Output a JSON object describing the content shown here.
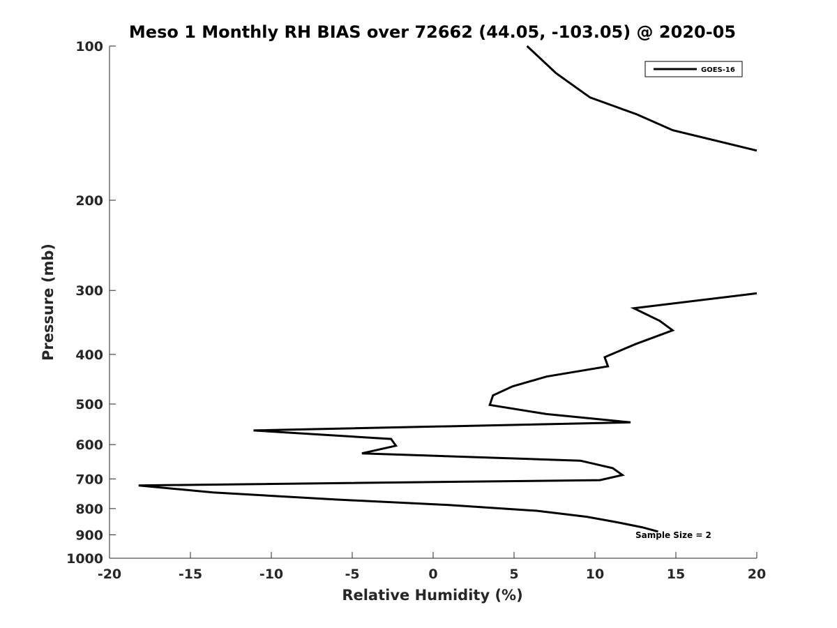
{
  "chart_data": {
    "type": "line",
    "title": "Meso 1 Monthly RH BIAS over 72662 (44.05, -103.05) @ 2020-05",
    "xlabel": "Relative Humidity (%)",
    "ylabel": "Pressure (mb)",
    "xlim": [
      -20,
      20
    ],
    "ylim": [
      100,
      1000
    ],
    "y_scale": "log",
    "y_reversed": true,
    "x_ticks": [
      -20,
      -15,
      -10,
      -5,
      0,
      5,
      10,
      15,
      20
    ],
    "x_tick_labels": [
      "-20",
      "-15",
      "-10",
      "-5",
      "0",
      "5",
      "10",
      "15",
      "20"
    ],
    "y_ticks": [
      100,
      200,
      300,
      400,
      500,
      600,
      700,
      800,
      900,
      1000
    ],
    "y_tick_labels": [
      "100",
      "200",
      "300",
      "400",
      "500",
      "600",
      "700",
      "800",
      "900",
      "1000"
    ],
    "grid": false,
    "legend_position": "top-right",
    "annotation": "Sample Size = 2",
    "series": [
      {
        "name": "GOES-16",
        "color": "#000000",
        "segments": [
          [
            {
              "x": 5.8,
              "y": 100
            },
            {
              "x": 7.6,
              "y": 113
            },
            {
              "x": 9.7,
              "y": 126
            },
            {
              "x": 12.6,
              "y": 136
            },
            {
              "x": 14.8,
              "y": 146
            },
            {
              "x": 20.0,
              "y": 160
            }
          ],
          [
            {
              "x": 20.0,
              "y": 304
            },
            {
              "x": 12.4,
              "y": 325
            },
            {
              "x": 14.0,
              "y": 344
            },
            {
              "x": 14.8,
              "y": 359
            },
            {
              "x": 12.5,
              "y": 382
            },
            {
              "x": 10.6,
              "y": 405
            },
            {
              "x": 10.8,
              "y": 422
            },
            {
              "x": 7.0,
              "y": 442
            },
            {
              "x": 4.9,
              "y": 462
            },
            {
              "x": 3.7,
              "y": 481
            },
            {
              "x": 3.5,
              "y": 502
            },
            {
              "x": 7.0,
              "y": 523
            },
            {
              "x": 12.2,
              "y": 543
            },
            {
              "x": -11.1,
              "y": 563
            },
            {
              "x": -2.6,
              "y": 585
            },
            {
              "x": -2.3,
              "y": 603
            },
            {
              "x": -4.4,
              "y": 624
            },
            {
              "x": 9.1,
              "y": 645
            },
            {
              "x": 11.1,
              "y": 667
            },
            {
              "x": 11.7,
              "y": 688
            },
            {
              "x": 10.3,
              "y": 704
            },
            {
              "x": -18.2,
              "y": 721
            },
            {
              "x": -13.6,
              "y": 744
            },
            {
              "x": -6.0,
              "y": 768
            },
            {
              "x": 0.9,
              "y": 787
            },
            {
              "x": 6.4,
              "y": 808
            },
            {
              "x": 9.5,
              "y": 830
            },
            {
              "x": 11.4,
              "y": 851
            },
            {
              "x": 12.9,
              "y": 870
            },
            {
              "x": 13.9,
              "y": 887
            }
          ]
        ]
      }
    ]
  }
}
